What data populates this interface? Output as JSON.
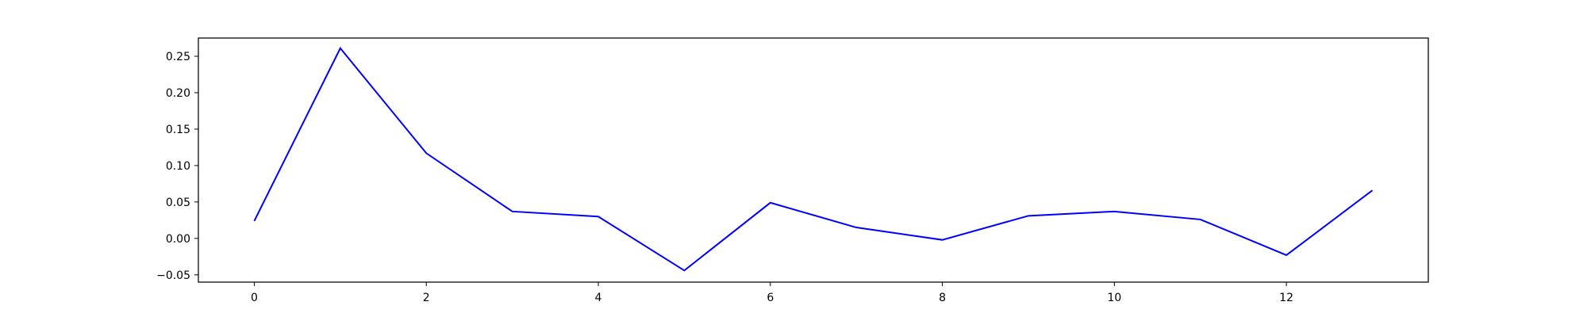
{
  "chart_data": {
    "type": "line",
    "title": "",
    "xlabel": "",
    "ylabel": "",
    "grid": false,
    "xlim": [
      -0.65,
      13.65
    ],
    "ylim": [
      -0.06,
      0.275
    ],
    "x_ticks": [
      0,
      2,
      4,
      6,
      8,
      10,
      12
    ],
    "x_tick_labels": [
      "0",
      "2",
      "4",
      "6",
      "8",
      "10",
      "12"
    ],
    "y_ticks": [
      -0.05,
      0.0,
      0.05,
      0.1,
      0.15,
      0.2,
      0.25
    ],
    "y_tick_labels": [
      "−0.05",
      "0.00",
      "0.05",
      "0.10",
      "0.15",
      "0.20",
      "0.25"
    ],
    "series": [
      {
        "color": "#0000ff",
        "x": [
          0,
          1,
          2,
          3,
          4,
          5,
          6,
          7,
          8,
          9,
          10,
          11,
          12,
          13
        ],
        "y": [
          0.024,
          0.261,
          0.117,
          0.037,
          0.03,
          -0.044,
          0.049,
          0.015,
          -0.002,
          0.031,
          0.037,
          0.026,
          -0.023,
          0.066
        ]
      }
    ]
  }
}
